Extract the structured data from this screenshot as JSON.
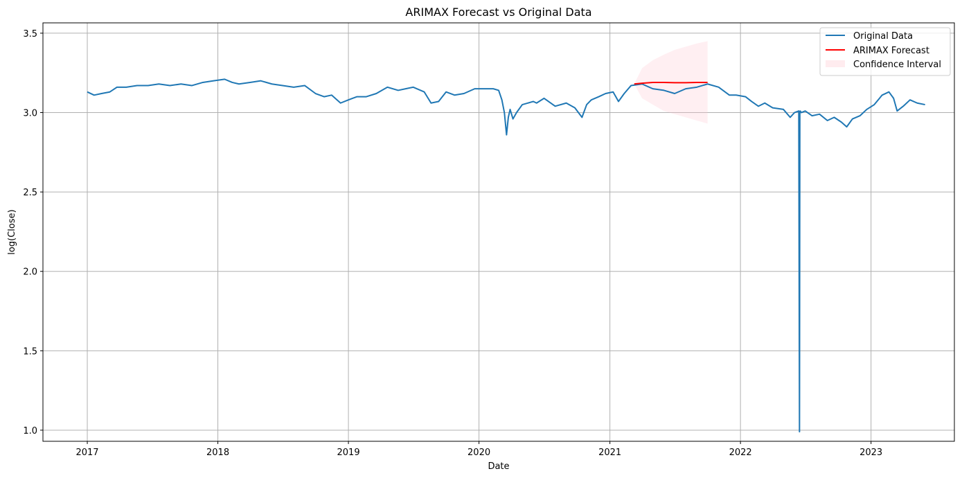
{
  "chart_data": {
    "type": "line",
    "title": "ARIMAX Forecast vs Original Data",
    "xlabel": "Date",
    "ylabel": "log(Close)",
    "x_range": [
      "2016-08-30",
      "2023-08-22"
    ],
    "ylim": [
      0.93,
      3.565
    ],
    "x_ticks": [
      "2017",
      "2018",
      "2019",
      "2020",
      "2021",
      "2022",
      "2023"
    ],
    "y_ticks": [
      "1.0",
      "1.5",
      "2.0",
      "2.5",
      "3.0",
      "3.5"
    ],
    "grid": true,
    "legend_position": "top-right",
    "legend": [
      "Original Data",
      "ARIMAX Forecast",
      "Confidence Interval"
    ],
    "colors": {
      "original": "#1f77b4",
      "forecast": "#ff0000",
      "confidence": "#ffc0cb",
      "grid": "#b0b0b0"
    },
    "series": [
      {
        "name": "Original Data",
        "x": [
          "2017-01-01",
          "2017-01-20",
          "2017-02-10",
          "2017-03-05",
          "2017-03-25",
          "2017-04-20",
          "2017-05-20",
          "2017-06-20",
          "2017-07-20",
          "2017-08-20",
          "2017-09-20",
          "2017-10-20",
          "2017-11-20",
          "2017-12-20",
          "2018-01-20",
          "2018-02-10",
          "2018-03-01",
          "2018-04-01",
          "2018-05-01",
          "2018-06-01",
          "2018-07-01",
          "2018-08-01",
          "2018-09-01",
          "2018-10-01",
          "2018-10-25",
          "2018-11-15",
          "2018-12-10",
          "2019-01-01",
          "2019-01-25",
          "2019-02-20",
          "2019-03-20",
          "2019-04-20",
          "2019-05-20",
          "2019-06-10",
          "2019-07-01",
          "2019-08-01",
          "2019-08-20",
          "2019-09-10",
          "2019-10-01",
          "2019-10-25",
          "2019-11-20",
          "2019-12-20",
          "2020-01-20",
          "2020-02-10",
          "2020-02-25",
          "2020-03-05",
          "2020-03-12",
          "2020-03-18",
          "2020-03-23",
          "2020-03-28",
          "2020-04-05",
          "2020-04-15",
          "2020-05-01",
          "2020-06-01",
          "2020-06-10",
          "2020-07-01",
          "2020-08-01",
          "2020-09-01",
          "2020-09-25",
          "2020-10-15",
          "2020-10-28",
          "2020-11-10",
          "2020-12-01",
          "2020-12-20",
          "2021-01-10",
          "2021-01-25",
          "2021-02-10",
          "2021-03-01",
          "2021-04-01",
          "2021-05-01",
          "2021-06-01",
          "2021-07-01",
          "2021-08-01",
          "2021-09-01",
          "2021-10-01",
          "2021-11-01",
          "2021-12-01",
          "2021-12-20",
          "2022-01-15",
          "2022-02-01",
          "2022-02-20",
          "2022-03-10",
          "2022-04-01",
          "2022-05-01",
          "2022-05-20",
          "2022-06-01",
          "2022-06-13",
          "2022-06-15",
          "2022-06-16",
          "2022-06-17",
          "2022-06-20",
          "2022-07-01",
          "2022-07-20",
          "2022-08-10",
          "2022-09-01",
          "2022-09-20",
          "2022-10-10",
          "2022-10-25",
          "2022-11-10",
          "2022-12-01",
          "2022-12-20",
          "2023-01-10",
          "2023-02-01",
          "2023-02-20",
          "2023-03-05",
          "2023-03-15",
          "2023-04-01",
          "2023-04-20",
          "2023-05-10",
          "2023-06-01"
        ],
        "values": [
          3.13,
          3.11,
          3.12,
          3.13,
          3.16,
          3.16,
          3.17,
          3.17,
          3.18,
          3.17,
          3.18,
          3.17,
          3.19,
          3.2,
          3.21,
          3.19,
          3.18,
          3.19,
          3.2,
          3.18,
          3.17,
          3.16,
          3.17,
          3.12,
          3.1,
          3.11,
          3.06,
          3.08,
          3.1,
          3.1,
          3.12,
          3.16,
          3.14,
          3.15,
          3.16,
          3.13,
          3.06,
          3.07,
          3.13,
          3.11,
          3.12,
          3.15,
          3.15,
          3.15,
          3.14,
          3.08,
          3.0,
          2.86,
          2.97,
          3.02,
          2.96,
          3.0,
          3.05,
          3.07,
          3.06,
          3.09,
          3.04,
          3.06,
          3.03,
          2.97,
          3.05,
          3.08,
          3.1,
          3.12,
          3.13,
          3.07,
          3.12,
          3.17,
          3.18,
          3.15,
          3.14,
          3.12,
          3.15,
          3.16,
          3.18,
          3.16,
          3.11,
          3.11,
          3.1,
          3.07,
          3.04,
          3.06,
          3.03,
          3.02,
          2.97,
          3.0,
          3.01,
          0.99,
          3.0,
          3.01,
          3.0,
          3.01,
          2.98,
          2.99,
          2.95,
          2.97,
          2.94,
          2.91,
          2.96,
          2.98,
          3.02,
          3.05,
          3.11,
          3.13,
          3.09,
          3.01,
          3.04,
          3.08,
          3.06,
          3.05
        ]
      },
      {
        "name": "ARIMAX Forecast",
        "x": [
          "2021-03-10",
          "2021-04-01",
          "2021-05-01",
          "2021-06-01",
          "2021-07-01",
          "2021-08-01",
          "2021-09-01",
          "2021-10-01"
        ],
        "values": [
          3.18,
          3.185,
          3.19,
          3.19,
          3.188,
          3.188,
          3.19,
          3.19
        ]
      },
      {
        "name": "Confidence Interval",
        "x": [
          "2021-03-10",
          "2021-04-01",
          "2021-05-01",
          "2021-06-01",
          "2021-07-01",
          "2021-08-01",
          "2021-09-01",
          "2021-10-01"
        ],
        "upper": [
          3.18,
          3.28,
          3.33,
          3.365,
          3.395,
          3.415,
          3.435,
          3.45
        ],
        "lower": [
          3.18,
          3.09,
          3.05,
          3.01,
          2.99,
          2.97,
          2.95,
          2.93
        ]
      }
    ]
  }
}
